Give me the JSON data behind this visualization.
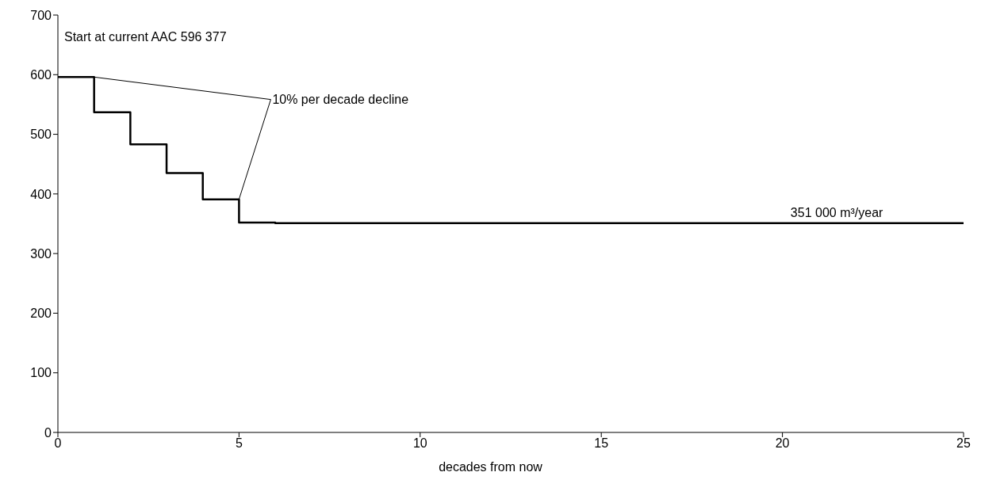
{
  "chart_data": {
    "type": "step",
    "xlabel": "decades from now",
    "x": [
      0,
      1,
      2,
      3,
      4,
      5,
      6,
      25
    ],
    "series": [
      {
        "color": "#000000",
        "values": [
          596,
          537,
          483,
          435,
          391,
          352,
          351,
          351
        ]
      }
    ],
    "xlim": [
      0,
      25
    ],
    "xticks": [
      0,
      5,
      10,
      15,
      20,
      25
    ],
    "ylim": [
      0,
      700
    ],
    "yticks": [
      0,
      100,
      200,
      300,
      400,
      500,
      600,
      700
    ],
    "grid": false,
    "legend": false,
    "marker": "none",
    "line_style": "solid",
    "annotations": [
      {
        "text": "Start at current AAC 596 377",
        "x": 0,
        "y": 596
      },
      "10% per decade decline",
      {
        "text": "351 000 m³/year",
        "x": 21.5,
        "y": 351
      }
    ]
  }
}
